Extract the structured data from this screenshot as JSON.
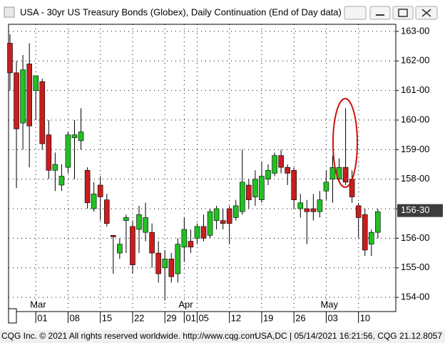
{
  "window_title": "USA - 30yr US Treasury Bonds (Globex), Daily Continuation (End of Day data)",
  "footer": {
    "left": "CQG Inc. © 2021 All rights reserved worldwide. http://www.cqg.com",
    "right": "USA,DC | 05/14/2021 16:21:56, CQG 21.12.8057"
  },
  "chart_data": {
    "type": "candlestick",
    "categories": [
      null,
      null,
      null,
      null,
      "01",
      null,
      null,
      null,
      null,
      "08",
      null,
      null,
      null,
      null,
      "15",
      null,
      null,
      null,
      null,
      "22",
      null,
      null,
      null,
      null,
      "29",
      null,
      null,
      "01",
      null,
      "05",
      null,
      null,
      null,
      null,
      "12",
      null,
      null,
      null,
      null,
      "19",
      null,
      null,
      null,
      null,
      "26",
      null,
      null,
      null,
      null,
      "03",
      null,
      null,
      null,
      null,
      "10",
      null,
      null,
      null
    ],
    "month_labels": [
      null,
      null,
      null,
      null,
      "Mar",
      null,
      null,
      null,
      null,
      null,
      null,
      null,
      null,
      null,
      null,
      null,
      null,
      null,
      null,
      null,
      null,
      null,
      null,
      null,
      null,
      null,
      null,
      "Apr",
      null,
      null,
      null,
      null,
      null,
      null,
      null,
      null,
      null,
      null,
      null,
      null,
      null,
      null,
      null,
      null,
      null,
      null,
      null,
      null,
      null,
      "May",
      null,
      null,
      null,
      null,
      null,
      null,
      null,
      null
    ],
    "open": [
      162.6,
      161.6,
      159.9,
      161.9,
      161.0,
      161.3,
      159.5,
      158.3,
      157.8,
      158.4,
      159.4,
      159.3,
      158.3,
      157.0,
      157.8,
      157.3,
      156.1,
      155.5,
      156.6,
      156.4,
      156.3,
      156.2,
      156.2,
      155.5,
      155.0,
      155.3,
      154.8,
      155.7,
      155.9,
      156.0,
      156.4,
      156.1,
      156.6,
      156.6,
      157.0,
      156.7,
      156.9,
      157.8,
      157.4,
      157.3,
      158.0,
      158.2,
      158.8,
      158.4,
      158.3,
      157.0,
      157.0,
      157.0,
      156.9,
      157.6,
      158.0,
      158.0,
      158.4,
      158.0,
      157.1,
      156.8,
      155.8,
      156.2
    ],
    "high": [
      162.9,
      162.0,
      162.2,
      162.6,
      161.5,
      161.4,
      160.0,
      158.9,
      158.5,
      159.6,
      160.0,
      160.4,
      158.4,
      157.9,
      158.1,
      157.5,
      156.1,
      156.0,
      156.8,
      156.6,
      157.1,
      157.2,
      156.5,
      155.9,
      155.6,
      155.5,
      156.0,
      156.7,
      156.3,
      156.5,
      156.8,
      157.0,
      157.1,
      157.0,
      157.1,
      157.3,
      159.0,
      158.0,
      158.3,
      158.6,
      158.5,
      158.9,
      159.0,
      158.5,
      158.4,
      157.5,
      157.3,
      157.5,
      157.6,
      158.3,
      158.8,
      158.7,
      160.4,
      158.3,
      157.2,
      157.0,
      156.3,
      157.0
    ],
    "low": [
      161.0,
      157.7,
      159.0,
      158.4,
      160.0,
      159.0,
      158.0,
      157.6,
      157.6,
      158.2,
      158.0,
      159.0,
      157.0,
      156.9,
      156.6,
      156.4,
      154.8,
      155.3,
      155.5,
      154.8,
      155.5,
      155.9,
      155.0,
      154.5,
      153.9,
      154.5,
      154.5,
      155.2,
      155.5,
      155.8,
      155.9,
      156.0,
      156.3,
      156.3,
      155.8,
      156.6,
      156.8,
      157.0,
      157.1,
      157.2,
      157.8,
      158.1,
      158.2,
      157.8,
      157.0,
      156.7,
      155.8,
      156.6,
      156.7,
      157.3,
      157.2,
      157.9,
      157.8,
      157.2,
      156.0,
      155.4,
      155.4,
      156.0
    ],
    "close": [
      161.6,
      159.7,
      161.7,
      159.8,
      161.5,
      159.2,
      158.3,
      158.5,
      158.1,
      159.5,
      159.5,
      159.6,
      157.2,
      157.5,
      157.4,
      156.5,
      156.05,
      155.8,
      156.7,
      155.1,
      156.8,
      156.7,
      155.5,
      154.8,
      155.3,
      154.7,
      155.8,
      156.3,
      155.7,
      156.4,
      156.0,
      156.9,
      157.0,
      156.5,
      156.5,
      157.1,
      157.9,
      157.3,
      158.0,
      158.1,
      158.3,
      158.8,
      158.4,
      158.2,
      157.3,
      157.2,
      156.9,
      156.9,
      157.3,
      157.9,
      158.4,
      158.4,
      157.9,
      157.4,
      156.7,
      155.6,
      156.2,
      156.9
    ],
    "up_color": "#22c022",
    "down_color": "#c81e1e",
    "ylim": [
      153.52,
      163.24
    ],
    "yticks": [
      {
        "value": 154,
        "label": "154-00"
      },
      {
        "value": 155,
        "label": "155-00"
      },
      {
        "value": 156,
        "label": "156-00"
      },
      {
        "value": 157,
        "label": "157-00"
      },
      {
        "value": 158,
        "label": "158-00"
      },
      {
        "value": 159,
        "label": "159-00"
      },
      {
        "value": 160,
        "label": "160-00"
      },
      {
        "value": 161,
        "label": "161-00"
      },
      {
        "value": 162,
        "label": "162-00"
      },
      {
        "value": 163,
        "label": "163-00"
      }
    ],
    "last_price": {
      "value": 156.9375,
      "label": "156-30"
    },
    "grid": true
  }
}
